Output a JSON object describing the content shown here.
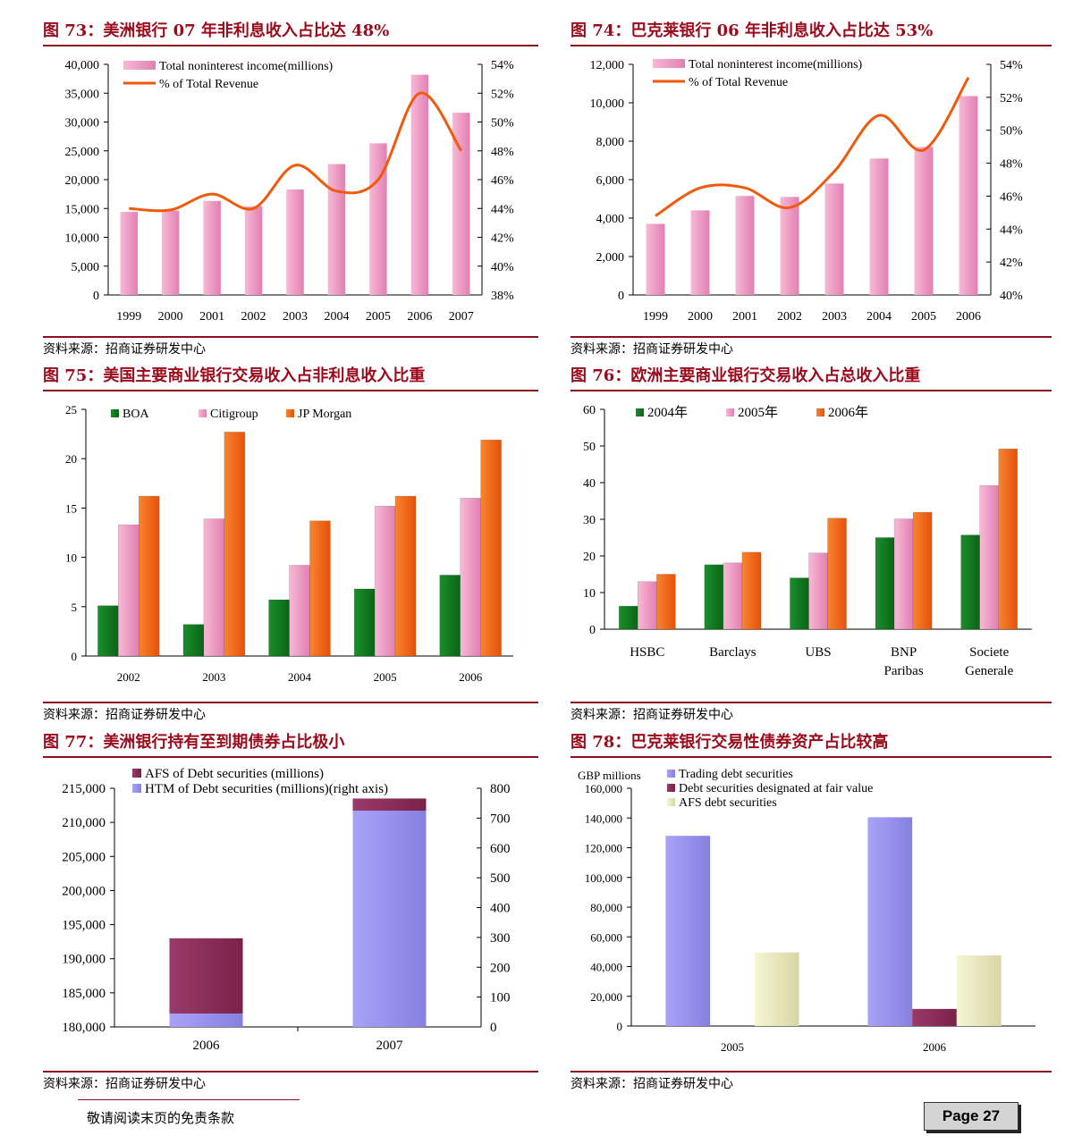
{
  "source_text": "资料来源：招商证券研发中心",
  "footer": {
    "disclaimer": "敬请阅读末页的免责条款",
    "page": "Page 27"
  },
  "colors": {
    "title": "#9a0a1b",
    "pink": "#f09ac4",
    "orange": "#f05a0a",
    "green": "#0f7a1e",
    "purple_blue": "#9a94f0",
    "maroon": "#8a2a58",
    "cream": "#ecebc0"
  },
  "figures": [
    {
      "title": "图 73：美洲银行 07 年非利息收入占比达 48%",
      "source": "资料来源：招商证券研发中心",
      "chart_data": {
        "type": "bar+line",
        "categories": [
          "1999",
          "2000",
          "2001",
          "2002",
          "2003",
          "2004",
          "2005",
          "2006",
          "2007"
        ],
        "left_ticks": [
          "40,000",
          "35,000",
          "30,000",
          "25,000",
          "20,000",
          "15,000",
          "10,000",
          "5,000",
          "0"
        ],
        "right_ticks": [
          "54%",
          "52%",
          "50%",
          "48%",
          "46%",
          "44%",
          "42%",
          "40%",
          "38%"
        ],
        "ylim": [
          0,
          40000
        ],
        "y2lim": [
          38,
          54
        ],
        "series": [
          {
            "name": "Total noninterest income(millions)",
            "type": "bar",
            "values": [
              14400,
              14600,
              16300,
              15400,
              18300,
              22700,
              26300,
              38200,
              31600
            ]
          },
          {
            "name": "% of Total Revenue",
            "type": "line",
            "axis": "right",
            "values": [
              44.0,
              43.9,
              45.0,
              44.0,
              47.0,
              45.2,
              46.0,
              52.0,
              48.0
            ]
          }
        ]
      }
    },
    {
      "title": "图 74：巴克莱银行 06 年非利息收入占比达 53%",
      "source": "资料来源：招商证券研发中心",
      "chart_data": {
        "type": "bar+line",
        "categories": [
          "1999",
          "2000",
          "2001",
          "2002",
          "2003",
          "2004",
          "2005",
          "2006"
        ],
        "left_ticks": [
          "12,000",
          "10,000",
          "8,000",
          "6,000",
          "4,000",
          "2,000",
          "0"
        ],
        "right_ticks": [
          "54%",
          "52%",
          "50%",
          "48%",
          "46%",
          "44%",
          "42%",
          "40%"
        ],
        "ylim": [
          0,
          12000
        ],
        "y2lim": [
          40,
          54
        ],
        "series": [
          {
            "name": "Total noninterest income(millions)",
            "type": "bar",
            "values": [
              3700,
              4400,
              5150,
              5100,
              5800,
              7100,
              7700,
              10350
            ]
          },
          {
            "name": "% of Total Revenue",
            "type": "line",
            "axis": "right",
            "values": [
              44.8,
              46.5,
              46.5,
              45.3,
              47.5,
              50.9,
              48.8,
              53.2
            ]
          }
        ]
      }
    },
    {
      "title": "图 75：美国主要商业银行交易收入占非利息收入比重",
      "source": "资料来源：招商证券研发中心",
      "chart_data": {
        "type": "bar",
        "categories": [
          "2002",
          "2003",
          "2004",
          "2005",
          "2006"
        ],
        "left_ticks": [
          "25",
          "20",
          "15",
          "10",
          "5",
          "0"
        ],
        "ylim": [
          0,
          25
        ],
        "series": [
          {
            "name": "BOA",
            "values": [
              5.1,
              3.2,
              5.7,
              6.8,
              8.2
            ]
          },
          {
            "name": "Citigroup",
            "values": [
              13.3,
              13.9,
              9.2,
              15.2,
              16.0
            ]
          },
          {
            "name": "JP Morgan",
            "values": [
              16.2,
              22.7,
              13.7,
              16.2,
              21.9
            ]
          }
        ]
      }
    },
    {
      "title": "图 76：欧洲主要商业银行交易收入占总收入比重",
      "source": "资料来源：招商证券研发中心",
      "chart_data": {
        "type": "bar",
        "categories": [
          [
            "HSBC"
          ],
          [
            "Barclays"
          ],
          [
            "UBS"
          ],
          [
            "BNP",
            "Paribas"
          ],
          [
            "Societe",
            "Generale"
          ]
        ],
        "left_ticks": [
          "60",
          "50",
          "40",
          "30",
          "20",
          "10",
          "0"
        ],
        "ylim": [
          0,
          60
        ],
        "series": [
          {
            "name": "2004年",
            "values": [
              6.3,
              17.6,
              14.0,
              25.0,
              25.7
            ]
          },
          {
            "name": "2005年",
            "values": [
              13.0,
              18.1,
              20.8,
              30.1,
              39.2
            ]
          },
          {
            "name": "2006年",
            "values": [
              15.0,
              21.0,
              30.3,
              31.9,
              49.2
            ]
          }
        ]
      }
    },
    {
      "title": "图 77：美洲银行持有至到期债券占比极小",
      "source": "资料来源：招商证券研发中心",
      "chart_data": {
        "type": "bar",
        "categories": [
          "2006",
          "2007"
        ],
        "left_ticks": [
          "215,000",
          "210,000",
          "205,000",
          "200,000",
          "195,000",
          "190,000",
          "185,000",
          "180,000"
        ],
        "right_ticks": [
          "800",
          "700",
          "600",
          "500",
          "400",
          "300",
          "200",
          "100",
          "0"
        ],
        "ylim": [
          180000,
          215000
        ],
        "y2lim": [
          0,
          800
        ],
        "series": [
          {
            "name": "AFS of Debt securities (millions)",
            "values": [
              193000,
              213500
            ]
          },
          {
            "name": "HTM of Debt securities (millions)(right axis)",
            "axis": "right",
            "values": [
              45,
              725
            ]
          }
        ]
      }
    },
    {
      "title": "图 78：巴克莱银行交易性债券资产占比较高",
      "source": "资料来源：招商证券研发中心",
      "chart_data": {
        "type": "bar",
        "ylabel": "GBP millions",
        "categories": [
          "2005",
          "2006"
        ],
        "left_ticks": [
          "160,000",
          "140,000",
          "120,000",
          "100,000",
          "80,000",
          "60,000",
          "40,000",
          "20,000",
          "0"
        ],
        "ylim": [
          0,
          160000
        ],
        "series": [
          {
            "name": "Trading debt securities",
            "values": [
              128000,
              140500
            ]
          },
          {
            "name": "Debt securities designated at fair value",
            "values": [
              0,
              11500
            ]
          },
          {
            "name": "AFS debt securities",
            "values": [
              49500,
              47500
            ]
          }
        ]
      }
    }
  ]
}
